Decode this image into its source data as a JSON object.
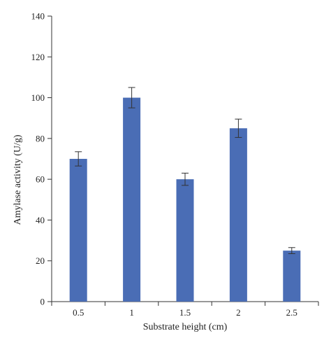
{
  "chart_data": {
    "type": "bar",
    "categories": [
      "0.5",
      "1",
      "1.5",
      "2",
      "2.5"
    ],
    "values": [
      70,
      100,
      60,
      85,
      25
    ],
    "error_bars": [
      3.5,
      5,
      3,
      4.5,
      1.5
    ],
    "xlabel": "Substrate height (cm)",
    "ylabel": "Amylase activity (U/g)",
    "ylim": [
      0,
      140
    ],
    "yticks": [
      0,
      20,
      40,
      60,
      80,
      100,
      120,
      140
    ],
    "grid": false,
    "legend": "none",
    "bar_color": "#4a6db5",
    "axis_color": "#333333"
  }
}
